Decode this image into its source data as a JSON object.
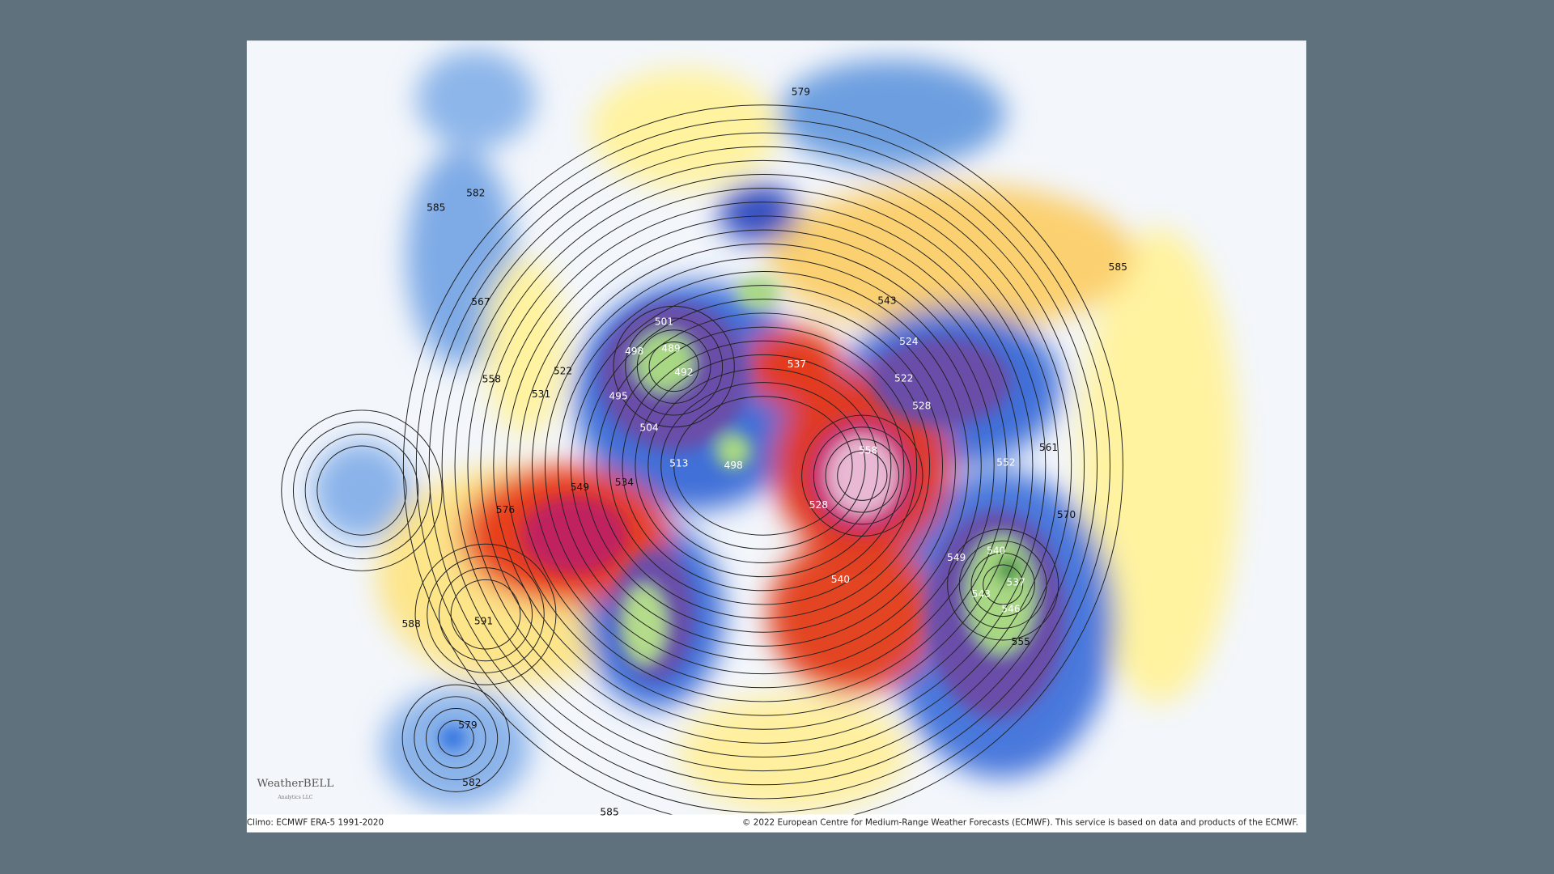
{
  "map": {
    "contour_labels": [
      "579",
      "582",
      "585",
      "567",
      "558",
      "531",
      "522",
      "501",
      "498",
      "489",
      "492",
      "495",
      "504",
      "513",
      "498",
      "534",
      "549",
      "576",
      "591",
      "588",
      "579",
      "582",
      "585",
      "540",
      "528",
      "558",
      "537",
      "543",
      "552",
      "561",
      "570",
      "540",
      "537",
      "543",
      "546",
      "555",
      "549",
      "524",
      "522",
      "528",
      "585"
    ],
    "logo": "WeatherBELL",
    "logo_sub": "Analytics LLC",
    "footer": {
      "left": "Climo: ECMWF ERA-5 1991-2020",
      "right": "© 2022 European Centre for Medium-Range Weather Forecasts (ECMWF). This service is based on data and products of the ECMWF."
    }
  }
}
